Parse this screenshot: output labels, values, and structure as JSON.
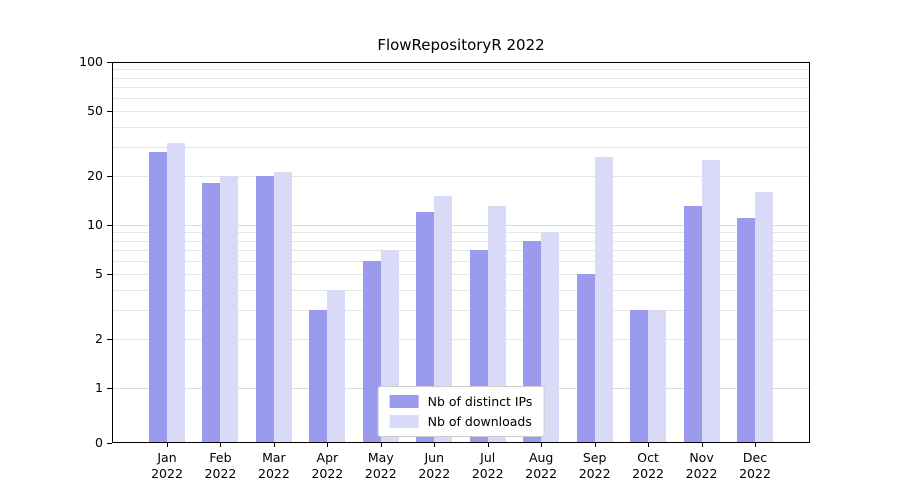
{
  "title": "FlowRepositoryR 2022",
  "chart_data": {
    "type": "bar",
    "title": "FlowRepositoryR 2022",
    "categories": [
      "Jan",
      "Feb",
      "Mar",
      "Apr",
      "May",
      "Jun",
      "Jul",
      "Aug",
      "Sep",
      "Oct",
      "Nov",
      "Dec"
    ],
    "year_label": "2022",
    "series": [
      {
        "name": "Nb of distinct IPs",
        "color": "#9b9bee",
        "values": [
          28,
          18,
          20,
          3,
          6,
          12,
          7,
          8,
          5,
          3,
          13,
          11
        ]
      },
      {
        "name": "Nb of downloads",
        "color": "#d9d9f8",
        "values": [
          32,
          20,
          21,
          4,
          7,
          15,
          13,
          9,
          26,
          3,
          25,
          16
        ]
      }
    ],
    "yticks": [
      0,
      1,
      2,
      5,
      10,
      20,
      50,
      100
    ],
    "ylim": [
      0,
      100
    ],
    "yscale": "symlog",
    "grid": "horizontal log major+minor",
    "legend_position": "lower center"
  }
}
